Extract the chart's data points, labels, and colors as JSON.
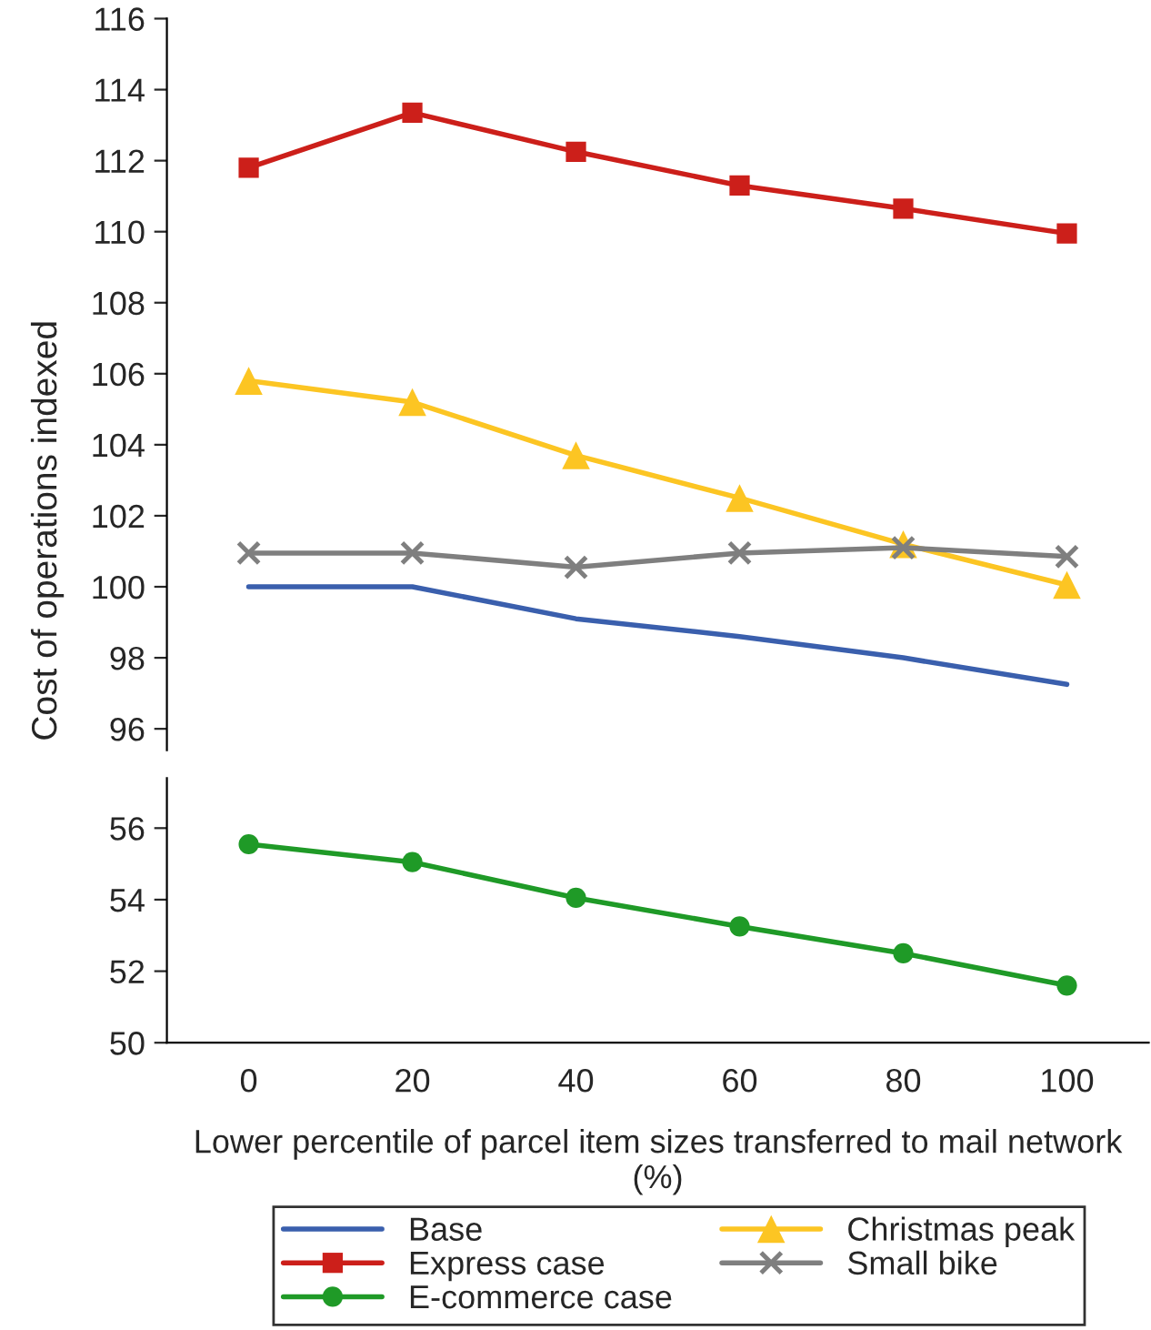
{
  "chart_data": [
    {
      "type": "line",
      "ylabel": "Cost of operations indexed",
      "x": [
        0,
        20,
        40,
        60,
        80,
        100
      ],
      "ylim": [
        95.4,
        116
      ],
      "yticks": [
        96,
        98,
        100,
        102,
        104,
        106,
        108,
        110,
        112,
        114,
        116
      ],
      "tick_labels": "y",
      "legend": "bottom",
      "grid": false,
      "series": [
        {
          "name": "Base",
          "color": "#3a5fad",
          "marker": "none",
          "values": [
            100,
            100,
            99.1,
            98.6,
            98.0,
            97.25
          ]
        },
        {
          "name": "Christmas peak",
          "color": "#fcc523",
          "marker": "triangle",
          "values": [
            105.8,
            105.2,
            103.7,
            102.5,
            101.2,
            100.05
          ]
        },
        {
          "name": "Express case",
          "color": "#cc1f1a",
          "marker": "square",
          "values": [
            111.8,
            113.35,
            112.25,
            111.3,
            110.65,
            109.95
          ]
        },
        {
          "name": "Small bike",
          "color": "#7f7f7f",
          "marker": "cross",
          "values": [
            100.95,
            100.95,
            100.55,
            100.95,
            101.1,
            100.85
          ]
        }
      ]
    },
    {
      "type": "line",
      "xlabel": "Lower percentile of parcel item sizes transferred to mail network (%)",
      "x": [
        0,
        20,
        40,
        60,
        80,
        100
      ],
      "xlim": [
        -10,
        110
      ],
      "xticks": [
        0,
        20,
        40,
        60,
        80,
        100
      ],
      "ylim": [
        50,
        57.4
      ],
      "yticks": [
        50,
        52,
        54,
        56
      ],
      "legend": "bottom",
      "grid": false,
      "series": [
        {
          "name": "E-commerce case",
          "color": "#1f9a27",
          "marker": "circle",
          "values": [
            55.55,
            55.05,
            54.05,
            53.25,
            52.5,
            51.6
          ]
        }
      ]
    }
  ]
}
